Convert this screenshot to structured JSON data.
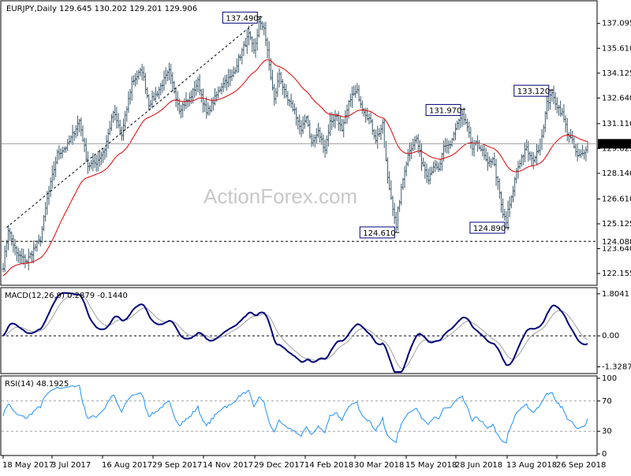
{
  "chart_data": [
    {
      "type": "candlestick",
      "symbol": "EURJPY",
      "timeframe": "Daily",
      "ohlc_label": "129.645 130.202 129.201 129.906",
      "title": "EURJPY,Daily  129.645 130.202 129.201 129.906",
      "watermark": "ActionForex.com",
      "ylim": [
        121.5,
        138.4
      ],
      "y_ticks": [
        122.155,
        123.64,
        125.125,
        126.61,
        128.14,
        129.625,
        131.11,
        132.64,
        134.125,
        135.61,
        137.095
      ],
      "y_tick_labels": [
        "122.155",
        "123.640",
        "125.125",
        "126.610",
        "128.140",
        "129.625",
        "131.110",
        "132.640",
        "134.125",
        "135.610",
        "137.095"
      ],
      "x_tick_labels": [
        "18 May 2017",
        "3 Jul 2017",
        "16 Aug 2017",
        "29 Sep 2017",
        "14 Nov 2017",
        "29 Dec 2017",
        "14 Feb 2018",
        "30 Mar 2018",
        "15 May 2018",
        "28 Jun 2018",
        "13 Aug 2018",
        "26 Sep 2018"
      ],
      "current_price": 129.906,
      "current_price_label": "129.906",
      "support_level": 124.08,
      "support_level_label": "124.080",
      "annotations": [
        {
          "label": "137.490",
          "value": 137.49,
          "bar": 151
        },
        {
          "label": "124.610",
          "value": 124.61,
          "bar": 232
        },
        {
          "label": "131.970",
          "value": 131.97,
          "bar": 271
        },
        {
          "label": "124.890",
          "value": 124.89,
          "bar": 297
        },
        {
          "label": "133.120",
          "value": 133.12,
          "bar": 323
        }
      ],
      "trendline": {
        "from": {
          "bar": 2,
          "value": 124.9
        },
        "to": {
          "bar": 151,
          "value": 137.49
        }
      },
      "moving_average_color": "#e00000",
      "bar_color": "#3d5a6c",
      "anchors": [
        [
          0,
          122.6
        ],
        [
          3,
          124.8
        ],
        [
          8,
          123.3
        ],
        [
          14,
          122.9
        ],
        [
          18,
          123.6
        ],
        [
          22,
          124.2
        ],
        [
          26,
          126.6
        ],
        [
          32,
          129.3
        ],
        [
          38,
          129.8
        ],
        [
          45,
          131.3
        ],
        [
          50,
          128.6
        ],
        [
          55,
          128.8
        ],
        [
          60,
          129.6
        ],
        [
          65,
          131.8
        ],
        [
          70,
          130.4
        ],
        [
          76,
          133.6
        ],
        [
          82,
          134.3
        ],
        [
          86,
          132.3
        ],
        [
          90,
          132.8
        ],
        [
          95,
          133.7
        ],
        [
          98,
          134.2
        ],
        [
          104,
          132.0
        ],
        [
          110,
          132.6
        ],
        [
          115,
          133.6
        ],
        [
          120,
          131.7
        ],
        [
          125,
          132.6
        ],
        [
          130,
          133.6
        ],
        [
          135,
          133.9
        ],
        [
          140,
          135.2
        ],
        [
          145,
          136.4
        ],
        [
          148,
          135.4
        ],
        [
          151,
          137.0
        ],
        [
          154,
          136.9
        ],
        [
          157,
          134.6
        ],
        [
          160,
          132.5
        ],
        [
          163,
          134.1
        ],
        [
          167,
          132.6
        ],
        [
          172,
          131.9
        ],
        [
          176,
          130.6
        ],
        [
          179,
          131.6
        ],
        [
          182,
          129.9
        ],
        [
          186,
          130.6
        ],
        [
          190,
          129.6
        ],
        [
          193,
          131.2
        ],
        [
          197,
          131.6
        ],
        [
          200,
          130.6
        ],
        [
          205,
          132.7
        ],
        [
          209,
          133.0
        ],
        [
          212,
          132.1
        ],
        [
          216,
          131.4
        ],
        [
          220,
          130.2
        ],
        [
          224,
          131.0
        ],
        [
          227,
          127.8
        ],
        [
          231,
          125.6
        ],
        [
          233,
          125.9
        ],
        [
          237,
          128.4
        ],
        [
          240,
          129.6
        ],
        [
          244,
          130.2
        ],
        [
          247,
          128.9
        ],
        [
          251,
          127.9
        ],
        [
          254,
          128.6
        ],
        [
          257,
          128.3
        ],
        [
          260,
          129.6
        ],
        [
          264,
          129.9
        ],
        [
          268,
          131.1
        ],
        [
          271,
          131.5
        ],
        [
          274,
          130.8
        ],
        [
          277,
          129.6
        ],
        [
          280,
          130.0
        ],
        [
          283,
          129.4
        ],
        [
          286,
          128.6
        ],
        [
          289,
          129.1
        ],
        [
          292,
          127.5
        ],
        [
          295,
          125.6
        ],
        [
          297,
          125.5
        ],
        [
          300,
          126.6
        ],
        [
          303,
          128.3
        ],
        [
          306,
          129.1
        ],
        [
          309,
          129.6
        ],
        [
          312,
          128.9
        ],
        [
          315,
          129.3
        ],
        [
          318,
          130.4
        ],
        [
          321,
          132.3
        ],
        [
          324,
          132.8
        ],
        [
          327,
          132.2
        ],
        [
          330,
          131.7
        ],
        [
          333,
          130.6
        ],
        [
          336,
          130.0
        ],
        [
          339,
          129.1
        ],
        [
          342,
          129.3
        ],
        [
          345,
          129.906
        ]
      ],
      "macd": {
        "label": "MACD(12,26,9) 0.2879 -0.1440",
        "ylim": [
          -1.55,
          2.0
        ],
        "y_ticks": [
          1.8041,
          0.0,
          -1.3287
        ],
        "y_tick_labels": [
          "1.8041",
          "0.00",
          "-1.3287"
        ],
        "main_color": "#00007a",
        "signal_color": "#a0a0a0"
      },
      "rsi": {
        "label": "RSI(14) 48.1925",
        "ylim": [
          0,
          100
        ],
        "y_ticks": [
          100,
          70,
          30,
          0
        ],
        "y_tick_labels": [
          "100",
          "70",
          "30",
          "0"
        ],
        "levels": [
          70,
          30
        ],
        "line_color": "#1e90ff"
      }
    }
  ]
}
